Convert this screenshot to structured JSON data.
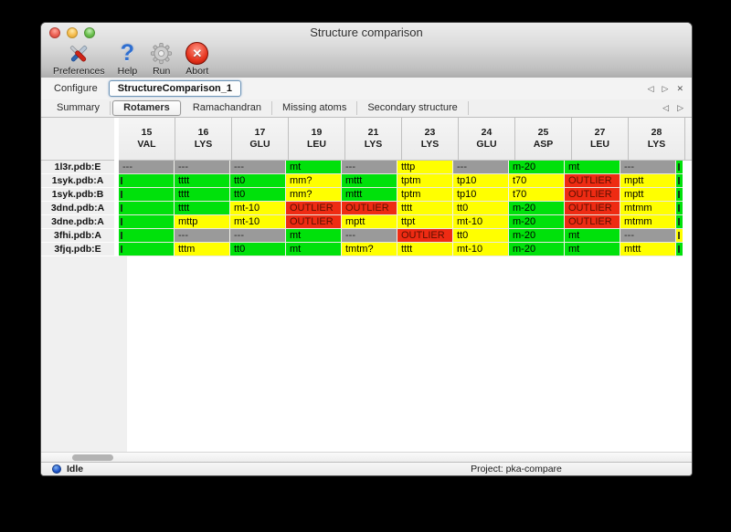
{
  "window": {
    "title": "Structure comparison"
  },
  "toolbar": {
    "items": [
      {
        "label": "Preferences",
        "icon": "tools-icon"
      },
      {
        "label": "Help",
        "icon": "help-icon"
      },
      {
        "label": "Run",
        "icon": "gear-icon"
      },
      {
        "label": "Abort",
        "icon": "abort-icon"
      }
    ]
  },
  "configure": {
    "label": "Configure",
    "value": "StructureComparison_1",
    "nav_prev": "◁",
    "nav_next": "▷",
    "nav_close": "✕"
  },
  "tabs": {
    "items": [
      "Summary",
      "Rotamers",
      "Ramachandran",
      "Missing atoms",
      "Secondary structure"
    ],
    "selected": "Rotamers",
    "nav_prev": "◁",
    "nav_next": "▷"
  },
  "colors": {
    "green": "#00e10b",
    "yellow": "#ffff00",
    "red": "#ee2b13",
    "gray": "#9a9a9a"
  },
  "table": {
    "columns": [
      {
        "num": "15",
        "res": "VAL"
      },
      {
        "num": "16",
        "res": "LYS"
      },
      {
        "num": "17",
        "res": "GLU"
      },
      {
        "num": "19",
        "res": "LEU"
      },
      {
        "num": "21",
        "res": "LYS"
      },
      {
        "num": "23",
        "res": "LYS"
      },
      {
        "num": "24",
        "res": "GLU"
      },
      {
        "num": "25",
        "res": "ASP"
      },
      {
        "num": "27",
        "res": "LEU"
      },
      {
        "num": "28",
        "res": "LYS"
      }
    ],
    "rows": [
      {
        "label": "1l3r.pdb:E",
        "cells": [
          {
            "text": "---",
            "color": "gray"
          },
          {
            "text": "---",
            "color": "gray"
          },
          {
            "text": "---",
            "color": "gray"
          },
          {
            "text": "mt",
            "color": "green"
          },
          {
            "text": "---",
            "color": "gray"
          },
          {
            "text": "tttp",
            "color": "yellow"
          },
          {
            "text": "---",
            "color": "gray"
          },
          {
            "text": "m-20",
            "color": "green"
          },
          {
            "text": "mt",
            "color": "green"
          },
          {
            "text": "---",
            "color": "gray"
          }
        ],
        "overflow_color": "green"
      },
      {
        "label": "1syk.pdb:A",
        "cells": [
          {
            "text": "",
            "color": "green",
            "clip": true
          },
          {
            "text": "tttt",
            "color": "green"
          },
          {
            "text": "tt0",
            "color": "green"
          },
          {
            "text": "mm?",
            "color": "yellow"
          },
          {
            "text": "mttt",
            "color": "green"
          },
          {
            "text": "tptm",
            "color": "yellow"
          },
          {
            "text": "tp10",
            "color": "yellow"
          },
          {
            "text": "t70",
            "color": "yellow"
          },
          {
            "text": "OUTLIER",
            "color": "red"
          },
          {
            "text": "mptt",
            "color": "yellow"
          }
        ],
        "overflow_color": "green"
      },
      {
        "label": "1syk.pdb:B",
        "cells": [
          {
            "text": "",
            "color": "green",
            "clip": true
          },
          {
            "text": "tttt",
            "color": "green"
          },
          {
            "text": "tt0",
            "color": "green"
          },
          {
            "text": "mm?",
            "color": "yellow"
          },
          {
            "text": "mttt",
            "color": "green"
          },
          {
            "text": "tptm",
            "color": "yellow"
          },
          {
            "text": "tp10",
            "color": "yellow"
          },
          {
            "text": "t70",
            "color": "yellow"
          },
          {
            "text": "OUTLIER",
            "color": "red"
          },
          {
            "text": "mptt",
            "color": "yellow"
          }
        ],
        "overflow_color": "green"
      },
      {
        "label": "3dnd.pdb:A",
        "cells": [
          {
            "text": "",
            "color": "green",
            "clip": true
          },
          {
            "text": "tttt",
            "color": "green"
          },
          {
            "text": "mt-10",
            "color": "yellow"
          },
          {
            "text": "OUTLIER",
            "color": "red"
          },
          {
            "text": "OUTLIER",
            "color": "red"
          },
          {
            "text": "tttt",
            "color": "yellow"
          },
          {
            "text": "tt0",
            "color": "yellow"
          },
          {
            "text": "m-20",
            "color": "green"
          },
          {
            "text": "OUTLIER",
            "color": "red"
          },
          {
            "text": "mtmm",
            "color": "yellow"
          }
        ],
        "overflow_color": "green"
      },
      {
        "label": "3dne.pdb:A",
        "cells": [
          {
            "text": "",
            "color": "green",
            "clip": true
          },
          {
            "text": "mttp",
            "color": "yellow"
          },
          {
            "text": "mt-10",
            "color": "yellow"
          },
          {
            "text": "OUTLIER",
            "color": "red"
          },
          {
            "text": "mptt",
            "color": "yellow"
          },
          {
            "text": "ttpt",
            "color": "yellow"
          },
          {
            "text": "mt-10",
            "color": "yellow"
          },
          {
            "text": "m-20",
            "color": "green"
          },
          {
            "text": "OUTLIER",
            "color": "red"
          },
          {
            "text": "mtmm",
            "color": "yellow"
          }
        ],
        "overflow_color": "green"
      },
      {
        "label": "3fhi.pdb:A",
        "cells": [
          {
            "text": "",
            "color": "green",
            "clip": true
          },
          {
            "text": "---",
            "color": "gray"
          },
          {
            "text": "---",
            "color": "gray"
          },
          {
            "text": "mt",
            "color": "green"
          },
          {
            "text": "---",
            "color": "gray"
          },
          {
            "text": "OUTLIER",
            "color": "red"
          },
          {
            "text": "tt0",
            "color": "yellow"
          },
          {
            "text": "m-20",
            "color": "green"
          },
          {
            "text": "mt",
            "color": "green"
          },
          {
            "text": "---",
            "color": "gray"
          }
        ],
        "overflow_color": "yellow"
      },
      {
        "label": "3fjq.pdb:E",
        "cells": [
          {
            "text": "",
            "color": "green",
            "clip": true
          },
          {
            "text": "tttm",
            "color": "yellow"
          },
          {
            "text": "tt0",
            "color": "green"
          },
          {
            "text": "mt",
            "color": "green"
          },
          {
            "text": "tmtm?",
            "color": "yellow"
          },
          {
            "text": "tttt",
            "color": "yellow"
          },
          {
            "text": "mt-10",
            "color": "yellow"
          },
          {
            "text": "m-20",
            "color": "green"
          },
          {
            "text": "mt",
            "color": "green"
          },
          {
            "text": "mttt",
            "color": "yellow"
          }
        ],
        "overflow_color": "green"
      }
    ]
  },
  "status": {
    "left": "Idle",
    "right": "Project: pka-compare"
  }
}
